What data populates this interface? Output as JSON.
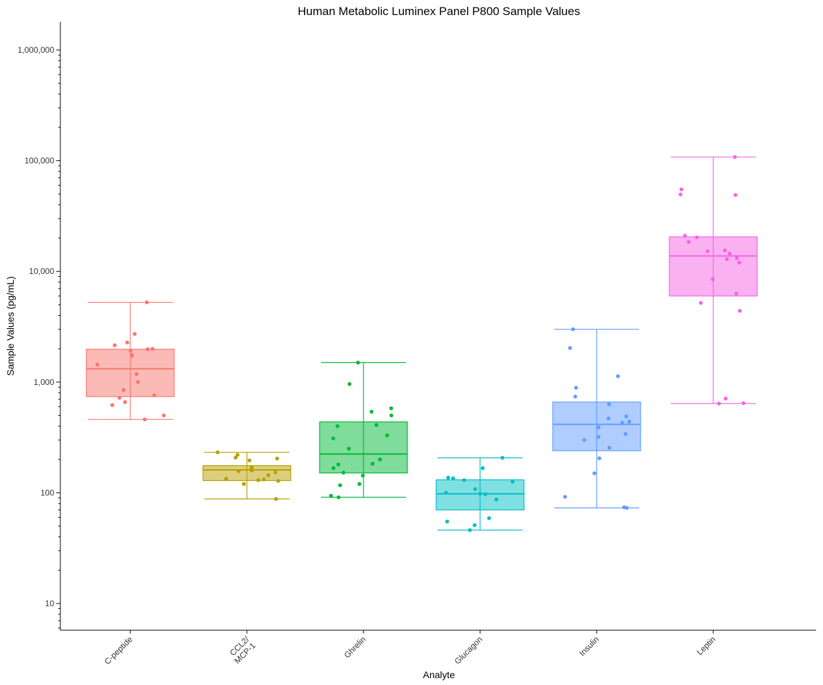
{
  "chart_data": {
    "type": "box",
    "title": "Human Metabolic Luminex Panel P800 Sample Values",
    "xlabel": "Analyte",
    "ylabel": "Sample Values (pg/mL)",
    "yscale": "log10",
    "ylim": [
      6,
      1800000
    ],
    "yticks": [
      {
        "value": 10,
        "label": "10"
      },
      {
        "value": 100,
        "label": "100"
      },
      {
        "value": 1000,
        "label": "1,000"
      },
      {
        "value": 10000,
        "label": "10,000"
      },
      {
        "value": 100000,
        "label": "100,000"
      },
      {
        "value": 1000000,
        "label": "1,000,000"
      }
    ],
    "grid": false,
    "legend": "none",
    "categories": [
      {
        "name": "C-peptide",
        "label_lines": [
          "C-peptide"
        ],
        "color": "#F8766D",
        "box": {
          "min": 460,
          "q1": 740,
          "median": 1320,
          "q3": 1980,
          "max": 5250
        },
        "points": [
          5250,
          2720,
          2280,
          2150,
          2000,
          1980,
          1920,
          1760,
          1730,
          1440,
          1180,
          1000,
          850,
          760,
          720,
          660,
          620,
          500,
          460
        ]
      },
      {
        "name": "CCL2/MCP-1",
        "label_lines": [
          "CCL2/",
          "MCP-1"
        ],
        "color": "#B79F00",
        "box": {
          "min": 88,
          "q1": 129,
          "median": 161,
          "q3": 176,
          "max": 232
        },
        "points": [
          232,
          220,
          208,
          204,
          196,
          170,
          168,
          160,
          159,
          157,
          153,
          144,
          134,
          132,
          130,
          128,
          120,
          88
        ]
      },
      {
        "name": "Ghrelin",
        "label_lines": [
          "Ghrelin"
        ],
        "color": "#00BA38",
        "box": {
          "min": 91,
          "q1": 151,
          "median": 224,
          "q3": 437,
          "max": 1500
        },
        "points": [
          1500,
          960,
          580,
          540,
          500,
          410,
          400,
          330,
          310,
          250,
          200,
          183,
          180,
          167,
          152,
          143,
          120,
          117,
          94,
          91
        ]
      },
      {
        "name": "Glucagon",
        "label_lines": [
          "Glucagon"
        ],
        "color": "#00BFC4",
        "box": {
          "min": 46,
          "q1": 70,
          "median": 98,
          "q3": 131,
          "max": 207
        },
        "points": [
          207,
          167,
          137,
          135,
          130,
          126,
          108,
          100,
          98,
          97,
          87,
          59,
          55,
          51,
          46
        ]
      },
      {
        "name": "Insulin",
        "label_lines": [
          "Insulin"
        ],
        "color": "#619CFF",
        "box": {
          "min": 73,
          "q1": 240,
          "median": 415,
          "q3": 660,
          "max": 3000
        },
        "points": [
          3000,
          2030,
          1130,
          890,
          740,
          630,
          490,
          470,
          440,
          430,
          390,
          340,
          320,
          300,
          255,
          205,
          150,
          92,
          74,
          73
        ]
      },
      {
        "name": "Leptin",
        "label_lines": [
          "Leptin"
        ],
        "color": "#F564E3",
        "box": {
          "min": 640,
          "q1": 6000,
          "median": 13800,
          "q3": 20500,
          "max": 108000
        },
        "points": [
          108000,
          55000,
          49500,
          49000,
          21000,
          20300,
          18500,
          15500,
          15200,
          14500,
          13200,
          12900,
          12000,
          8500,
          6300,
          5200,
          4400,
          710,
          645,
          640
        ]
      }
    ]
  }
}
